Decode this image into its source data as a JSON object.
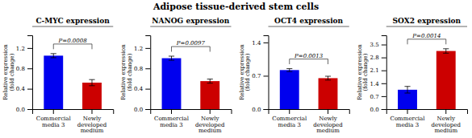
{
  "title": "Adipose tissue-derived stem cells",
  "chart_data": [
    {
      "type": "bar",
      "title": "C-MYC expression",
      "annotation": "P=0.0008",
      "y_label": "Relative expression\n(fold change)",
      "categories": [
        "Commercial\nmedia 3",
        "Newly\ndeveloped\nmedium"
      ],
      "values": [
        1.05,
        0.52
      ],
      "errors": [
        0.04,
        0.06
      ],
      "colors": [
        "#0000ee",
        "#cc0000"
      ],
      "ylim": [
        0,
        1.45
      ],
      "yticks": [
        {
          "value": 0.0,
          "label": "0.0"
        },
        0.4,
        0.8,
        1.2
      ]
    },
    {
      "type": "bar",
      "title": "NANOG expression",
      "annotation": "P=0.0097",
      "y_label": "Relative expression\n(fold change)",
      "categories": [
        "Commercial\nmedia 3",
        "Newly\ndeveloped\nmedium"
      ],
      "values": [
        1.0,
        0.55
      ],
      "errors": [
        0.04,
        0.04
      ],
      "colors": [
        "#0000ee",
        "#cc0000"
      ],
      "ylim": [
        0,
        1.45
      ],
      "yticks": [
        {
          "value": 0.0,
          "label": "0.0"
        },
        0.4,
        0.8,
        1.2
      ]
    },
    {
      "type": "bar",
      "title": "OCT4 expression",
      "annotation": "P=0.0013",
      "y_label": "Relative expression\n(fold change)",
      "categories": [
        "Commercial\nmedia 3",
        "Newly\ndeveloped\nmedium"
      ],
      "values": [
        0.82,
        0.65
      ],
      "errors": [
        0.03,
        0.04
      ],
      "colors": [
        "#0000ee",
        "#cc0000"
      ],
      "ylim": [
        0,
        1.55
      ],
      "yticks": [
        {
          "value": 0.0,
          "label": "0.0"
        },
        0.7,
        1.4
      ]
    },
    {
      "type": "bar",
      "title": "SOX2 expression",
      "annotation": "P=0.0014",
      "y_label": "Relative expression\n(fold change)",
      "categories": [
        "Commercial\nmedia 3",
        "Newly\ndeveloped\nmedium"
      ],
      "values": [
        1.05,
        3.15
      ],
      "errors": [
        0.18,
        0.12
      ],
      "colors": [
        "#0000ee",
        "#cc0000"
      ],
      "ylim": [
        0,
        4.0
      ],
      "yticks": [
        {
          "value": 0.0,
          "label": "0.0"
        },
        0.7,
        1.4,
        2.1,
        2.8,
        3.5
      ]
    }
  ]
}
